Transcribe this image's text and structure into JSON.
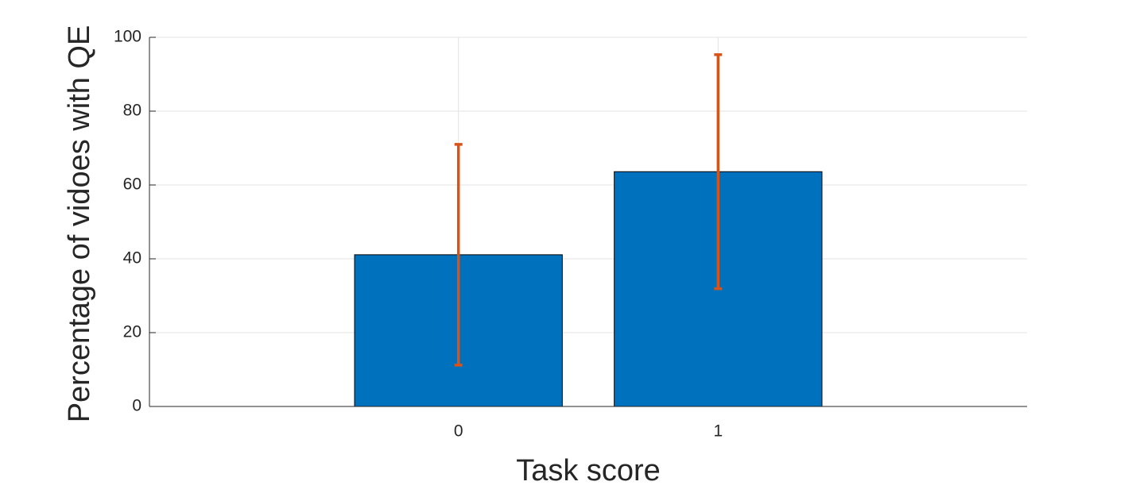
{
  "chart_data": {
    "type": "bar",
    "xlabel": "Task score",
    "ylabel": "Percentage of vidoes with QE",
    "x": [
      0,
      1
    ],
    "values": [
      41.1,
      63.6
    ],
    "errors": [
      29.9,
      31.7
    ],
    "color": "#0072bd",
    "error_color": "#d95319",
    "bar_width": 0.8,
    "xlim": [
      -1.19,
      2.19
    ],
    "xticks": [
      0,
      1
    ],
    "ylim": [
      0,
      100
    ],
    "yticks": [
      0,
      20,
      40,
      60,
      80,
      100
    ],
    "grid": true
  }
}
